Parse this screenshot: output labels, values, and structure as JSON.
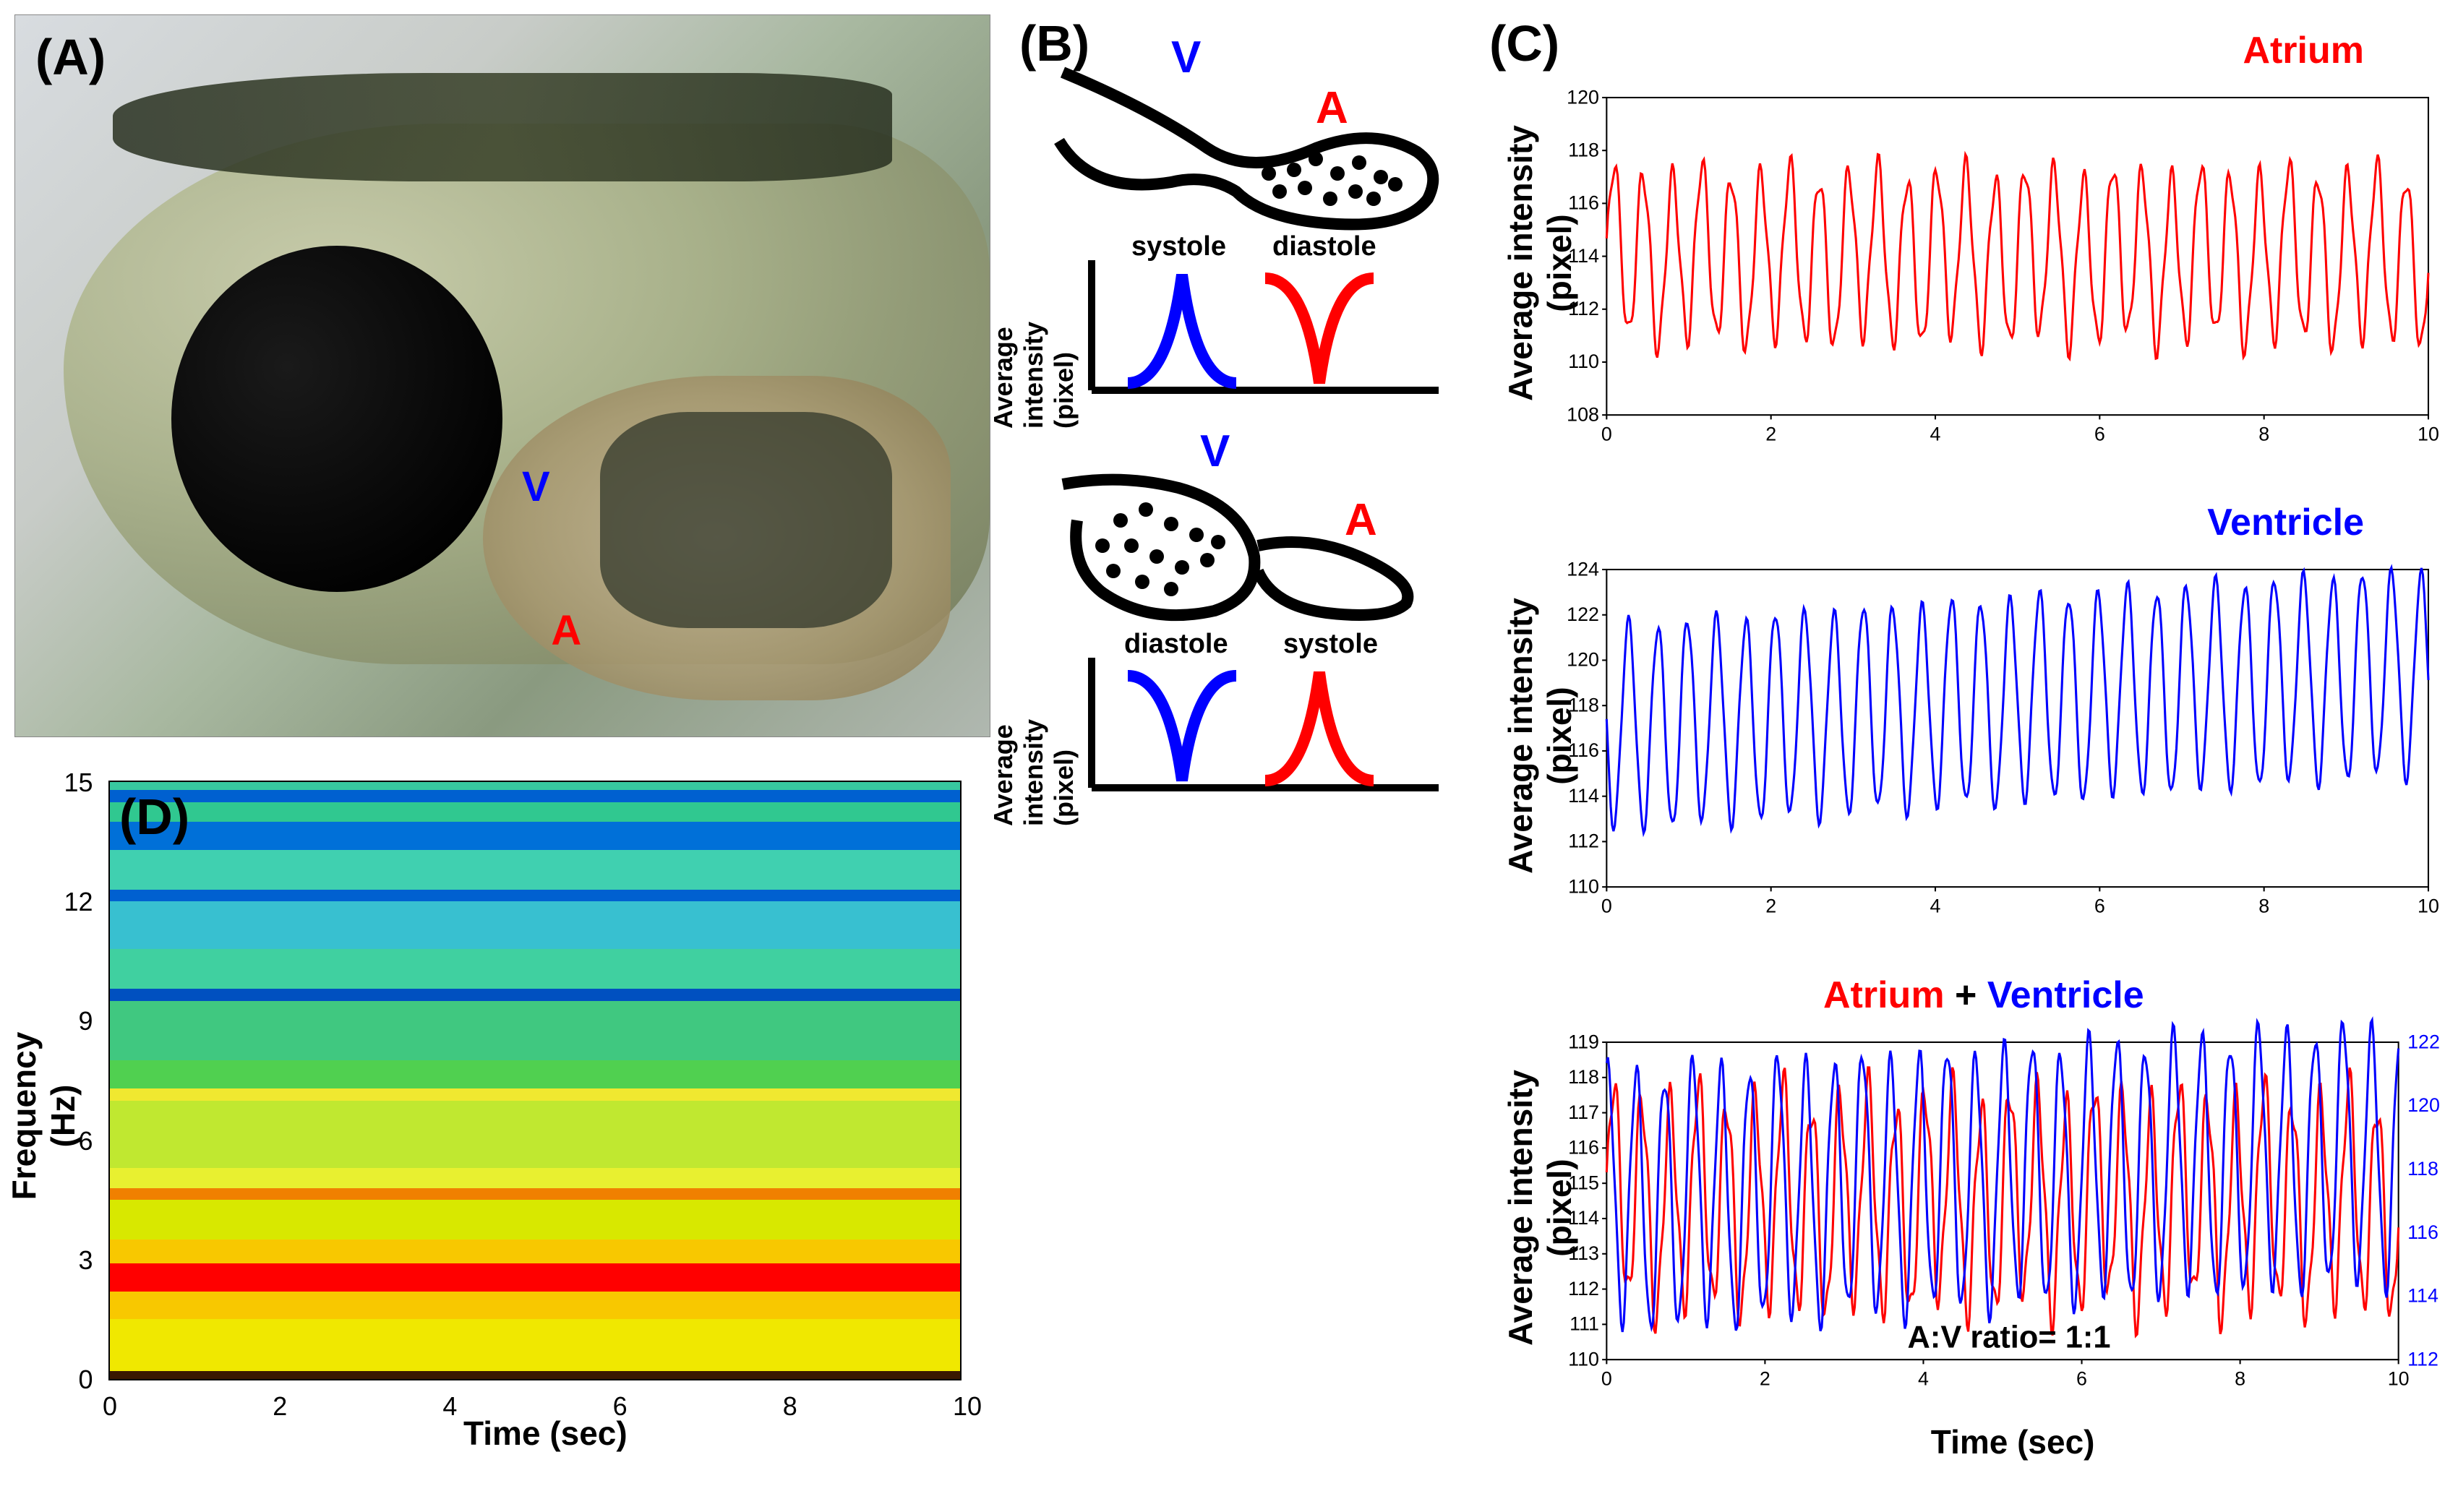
{
  "panels": {
    "A": {
      "label": "(A)",
      "v_label": "V",
      "a_label": "A"
    },
    "B": {
      "label": "(B)",
      "v_label": "V",
      "a_label": "A",
      "systole_label": "systole",
      "diastole_label": "diastole",
      "ylabel": "Average intensity (pixel)",
      "colors": {
        "ventricle": "#0000ff",
        "atrium": "#ff0000",
        "outline": "#000000"
      }
    },
    "C": {
      "label": "(C)",
      "atrium": {
        "title": "Atrium",
        "title_color": "#ff0000",
        "ylabel": "Average intensity (pixel)",
        "ylim": [
          108,
          120
        ],
        "yticks": [
          108,
          110,
          112,
          114,
          116,
          118,
          120
        ],
        "xlabel": "",
        "xlim": [
          0,
          10
        ],
        "xticks": [
          0,
          2,
          4,
          6,
          8,
          10
        ],
        "line_color": "#ff0000",
        "n_cycles": 28,
        "baseline": 114,
        "amplitude": 3.2,
        "noise": 0.5
      },
      "ventricle": {
        "title": "Ventricle",
        "title_color": "#0000ff",
        "ylabel": "Average intensity (pixel)",
        "ylim": [
          110,
          124
        ],
        "yticks": [
          110,
          112,
          114,
          116,
          118,
          120,
          122,
          124
        ],
        "xlim": [
          0,
          10
        ],
        "xticks": [
          0,
          2,
          4,
          6,
          8,
          10
        ],
        "line_color": "#0000ff",
        "n_cycles": 28,
        "baseline": 117,
        "amplitude": 4.5,
        "trend": 0.25,
        "noise": 0.3
      },
      "combined": {
        "title_atrium": "Atrium",
        "title_plus": " + ",
        "title_ventricle": "Ventricle",
        "ylabel": "Average intensity (pixel)",
        "xlabel": "Time (sec)",
        "ylim_left": [
          110,
          119
        ],
        "yticks_left": [
          110,
          111,
          112,
          113,
          114,
          115,
          116,
          117,
          118,
          119
        ],
        "ylim_right": [
          112,
          122
        ],
        "yticks_right": [
          112,
          114,
          116,
          118,
          120,
          122
        ],
        "xlim": [
          0,
          10
        ],
        "xticks": [
          0,
          2,
          4,
          6,
          8,
          10
        ],
        "line_color_a": "#ff0000",
        "line_color_v": "#0000ff",
        "ratio_label": "A:V ratio= 1:1",
        "n_cycles": 28
      }
    },
    "D": {
      "label": "(D)",
      "ylabel": "Frequency (Hz)",
      "xlabel": "Time (sec)",
      "ylim": [
        0,
        15
      ],
      "yticks": [
        0,
        3,
        6,
        9,
        12,
        15
      ],
      "xlim": [
        0,
        10
      ],
      "xticks": [
        0,
        2,
        4,
        6,
        8,
        10
      ],
      "peak_frequency": 2.5,
      "bands": [
        {
          "freq_lo": 0.0,
          "freq_hi": 0.2,
          "color": "#3a1800"
        },
        {
          "freq_lo": 0.2,
          "freq_hi": 1.5,
          "color": "#f0e800"
        },
        {
          "freq_lo": 1.5,
          "freq_hi": 2.2,
          "color": "#f8c800"
        },
        {
          "freq_lo": 2.2,
          "freq_hi": 2.9,
          "color": "#ff0000"
        },
        {
          "freq_lo": 2.9,
          "freq_hi": 3.5,
          "color": "#f8c800"
        },
        {
          "freq_lo": 3.5,
          "freq_hi": 4.5,
          "color": "#d8e800"
        },
        {
          "freq_lo": 4.5,
          "freq_hi": 4.8,
          "color": "#f08000"
        },
        {
          "freq_lo": 4.8,
          "freq_hi": 5.3,
          "color": "#e8f030"
        },
        {
          "freq_lo": 5.3,
          "freq_hi": 7.0,
          "color": "#c0e830"
        },
        {
          "freq_lo": 7.0,
          "freq_hi": 7.3,
          "color": "#f0e830"
        },
        {
          "freq_lo": 7.3,
          "freq_hi": 8.0,
          "color": "#50d050"
        },
        {
          "freq_lo": 8.0,
          "freq_hi": 9.5,
          "color": "#40c880"
        },
        {
          "freq_lo": 9.5,
          "freq_hi": 9.8,
          "color": "#0050c0"
        },
        {
          "freq_lo": 9.8,
          "freq_hi": 10.8,
          "color": "#40d0a0"
        },
        {
          "freq_lo": 10.8,
          "freq_hi": 12.0,
          "color": "#38c0d0"
        },
        {
          "freq_lo": 12.0,
          "freq_hi": 12.3,
          "color": "#0060d0"
        },
        {
          "freq_lo": 12.3,
          "freq_hi": 13.3,
          "color": "#40d0b0"
        },
        {
          "freq_lo": 13.3,
          "freq_hi": 14.0,
          "color": "#0070d8"
        },
        {
          "freq_lo": 14.0,
          "freq_hi": 14.5,
          "color": "#30c890"
        },
        {
          "freq_lo": 14.5,
          "freq_hi": 14.8,
          "color": "#0060d0"
        },
        {
          "freq_lo": 14.8,
          "freq_hi": 15.0,
          "color": "#38c8a0"
        }
      ]
    }
  }
}
